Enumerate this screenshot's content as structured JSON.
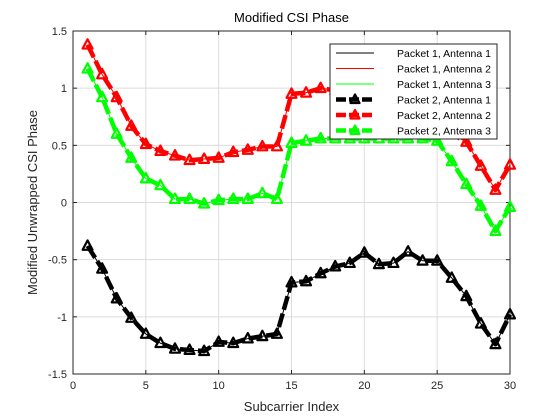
{
  "chart_data": {
    "type": "line",
    "title": "Modified CSI Phase",
    "xlabel": "Subcarrier Index",
    "ylabel": "Modified Unwrapped CSI Phase",
    "xlim": [
      0,
      30
    ],
    "ylim": [
      -1.5,
      1.5
    ],
    "xticks": [
      0,
      5,
      10,
      15,
      20,
      25,
      30
    ],
    "yticks": [
      -1.5,
      -1,
      -0.5,
      0,
      0.5,
      1,
      1.5
    ],
    "xtick_labels": [
      "0",
      "5",
      "10",
      "15",
      "20",
      "25",
      "30"
    ],
    "ytick_labels": [
      "-1.5",
      "-1",
      "-0.5",
      "0",
      "0.5",
      "1",
      "1.5"
    ],
    "grid": true,
    "legend_position": "top-right",
    "x": [
      1,
      2,
      3,
      4,
      5,
      6,
      7,
      8,
      9,
      10,
      11,
      12,
      13,
      14,
      15,
      16,
      17,
      18,
      19,
      20,
      21,
      22,
      23,
      24,
      25,
      26,
      27,
      28,
      29,
      30
    ],
    "series": [
      {
        "name": "Packet 1, Antenna 1",
        "color": "#000000",
        "style": "thin",
        "values": [
          -0.38,
          -0.58,
          -0.84,
          -1.01,
          -1.15,
          -1.23,
          -1.28,
          -1.29,
          -1.3,
          -1.22,
          -1.23,
          -1.19,
          -1.17,
          -1.15,
          -0.7,
          -0.69,
          -0.62,
          -0.56,
          -0.53,
          -0.44,
          -0.54,
          -0.53,
          -0.43,
          -0.51,
          -0.51,
          -0.66,
          -0.82,
          -1.06,
          -1.24,
          -0.98
        ]
      },
      {
        "name": "Packet 1, Antenna 2",
        "color": "#ff0000",
        "style": "thin",
        "values": [
          1.38,
          1.12,
          0.92,
          0.67,
          0.51,
          0.45,
          0.41,
          0.37,
          0.38,
          0.39,
          0.44,
          0.46,
          0.49,
          0.49,
          0.95,
          0.96,
          1.0,
          0.98,
          0.98,
          0.98,
          0.98,
          0.98,
          0.98,
          0.98,
          0.76,
          0.6,
          0.53,
          0.32,
          0.11,
          0.33
        ]
      },
      {
        "name": "Packet 1, Antenna 3",
        "color": "#00ff00",
        "style": "thin",
        "values": [
          1.17,
          0.92,
          0.6,
          0.39,
          0.21,
          0.15,
          0.03,
          0.03,
          -0.01,
          0.02,
          0.03,
          0.03,
          0.08,
          0.03,
          0.52,
          0.54,
          0.56,
          0.56,
          0.56,
          0.56,
          0.56,
          0.56,
          0.56,
          0.56,
          0.54,
          0.36,
          0.16,
          -0.03,
          -0.25,
          -0.04
        ]
      },
      {
        "name": "Packet 2, Antenna 1",
        "color": "#000000",
        "style": "thick",
        "values": [
          -0.38,
          -0.58,
          -0.84,
          -1.01,
          -1.15,
          -1.23,
          -1.28,
          -1.29,
          -1.3,
          -1.22,
          -1.23,
          -1.19,
          -1.17,
          -1.15,
          -0.7,
          -0.69,
          -0.62,
          -0.56,
          -0.53,
          -0.44,
          -0.54,
          -0.53,
          -0.43,
          -0.51,
          -0.51,
          -0.66,
          -0.82,
          -1.06,
          -1.24,
          -0.98
        ]
      },
      {
        "name": "Packet 2, Antenna 2",
        "color": "#ff0000",
        "style": "thick",
        "values": [
          1.38,
          1.12,
          0.92,
          0.67,
          0.51,
          0.45,
          0.41,
          0.37,
          0.38,
          0.39,
          0.44,
          0.46,
          0.49,
          0.49,
          0.95,
          0.96,
          1.0,
          0.98,
          0.98,
          0.98,
          0.98,
          0.98,
          0.98,
          0.98,
          0.76,
          0.6,
          0.53,
          0.32,
          0.11,
          0.33
        ]
      },
      {
        "name": "Packet 2, Antenna 3",
        "color": "#00ff00",
        "style": "thick",
        "values": [
          1.17,
          0.92,
          0.6,
          0.39,
          0.21,
          0.15,
          0.03,
          0.03,
          -0.01,
          0.02,
          0.03,
          0.03,
          0.08,
          0.03,
          0.52,
          0.54,
          0.56,
          0.56,
          0.56,
          0.56,
          0.56,
          0.56,
          0.56,
          0.56,
          0.54,
          0.36,
          0.16,
          -0.03,
          -0.25,
          -0.04
        ]
      }
    ]
  }
}
